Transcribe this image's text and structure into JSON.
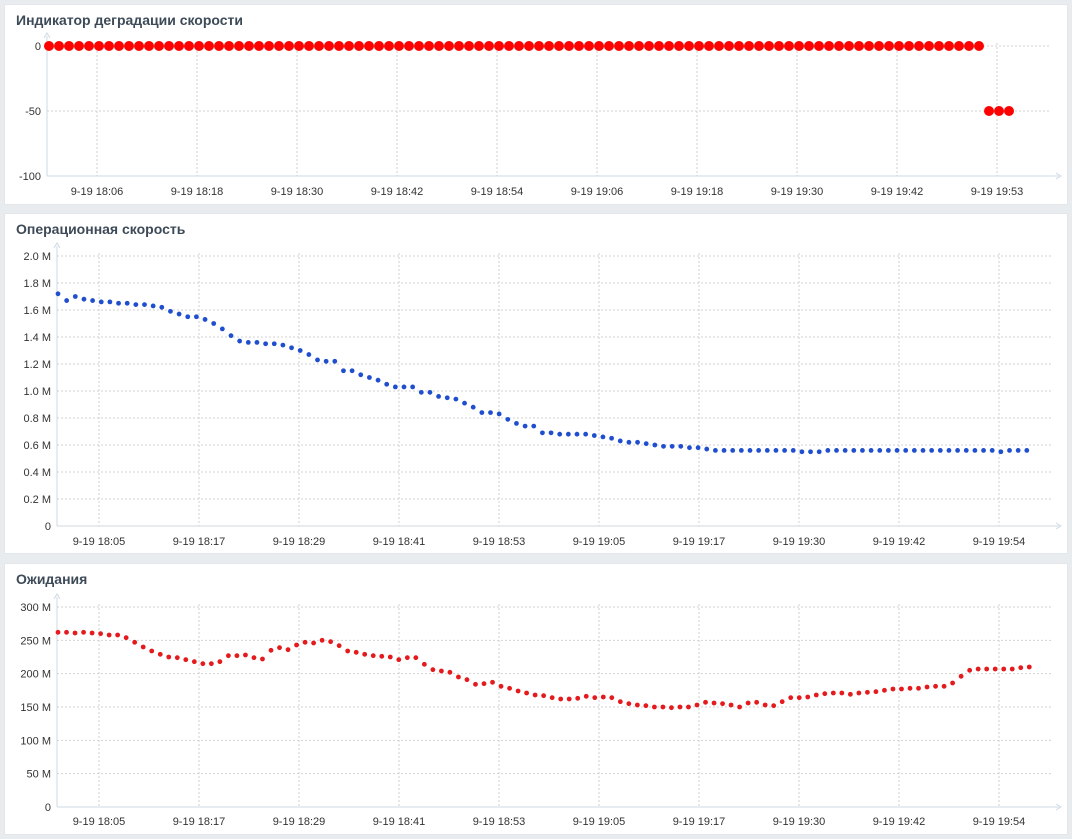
{
  "chart_data": [
    {
      "type": "scatter",
      "title": "Индикатор деградации скорости",
      "xlabel": "",
      "ylabel": "",
      "ylim": [
        -100,
        0
      ],
      "y_ticks": [
        "0",
        "-50",
        "-100"
      ],
      "y_tick_values": [
        0,
        -50,
        -100
      ],
      "x_ticks": [
        "9-19 18:06",
        "9-19 18:18",
        "9-19 18:30",
        "9-19 18:42",
        "9-19 18:54",
        "9-19 19:06",
        "9-19 19:18",
        "9-19 19:30",
        "9-19 19:42",
        "9-19 19:53"
      ],
      "color": "#ff0000",
      "grid": true,
      "series": [
        {
          "values": [
            0,
            0,
            0,
            0,
            0,
            0,
            0,
            0,
            0,
            0,
            0,
            0,
            0,
            0,
            0,
            0,
            0,
            0,
            0,
            0,
            0,
            0,
            0,
            0,
            0,
            0,
            0,
            0,
            0,
            0,
            0,
            0,
            0,
            0,
            0,
            0,
            0,
            0,
            0,
            0,
            0,
            0,
            0,
            0,
            0,
            0,
            0,
            0,
            0,
            0,
            0,
            0,
            0,
            0,
            0,
            0,
            0,
            0,
            0,
            0,
            0,
            0,
            0,
            0,
            0,
            0,
            0,
            0,
            0,
            0,
            0,
            0,
            0,
            0,
            0,
            0,
            0,
            0,
            0,
            0,
            0,
            0,
            0,
            0,
            0,
            0,
            0,
            0,
            0,
            0,
            0,
            0,
            0,
            0,
            -50,
            -50,
            -50
          ]
        }
      ]
    },
    {
      "type": "scatter",
      "title": "Операционная скорость",
      "xlabel": "",
      "ylabel": "",
      "ylim": [
        0,
        2.0
      ],
      "y_ticks": [
        "2.0 M",
        "1.8 M",
        "1.6 M",
        "1.4 M",
        "1.2 M",
        "1.0 M",
        "0.8 M",
        "0.6 M",
        "0.4 M",
        "0.2 M",
        "0"
      ],
      "y_tick_values": [
        2.0,
        1.8,
        1.6,
        1.4,
        1.2,
        1.0,
        0.8,
        0.6,
        0.4,
        0.2,
        0
      ],
      "x_ticks": [
        "9-19 18:05",
        "9-19 18:17",
        "9-19 18:29",
        "9-19 18:41",
        "9-19 18:53",
        "9-19 19:05",
        "9-19 19:17",
        "9-19 19:30",
        "9-19 19:42",
        "9-19 19:54"
      ],
      "color": "#1f4fcf",
      "grid": true,
      "series": [
        {
          "values": [
            1.72,
            1.67,
            1.7,
            1.68,
            1.67,
            1.66,
            1.66,
            1.65,
            1.65,
            1.64,
            1.64,
            1.63,
            1.62,
            1.59,
            1.57,
            1.55,
            1.55,
            1.53,
            1.5,
            1.46,
            1.41,
            1.37,
            1.36,
            1.36,
            1.35,
            1.35,
            1.34,
            1.32,
            1.3,
            1.27,
            1.23,
            1.22,
            1.22,
            1.15,
            1.15,
            1.12,
            1.1,
            1.08,
            1.05,
            1.03,
            1.03,
            1.03,
            0.99,
            0.99,
            0.96,
            0.95,
            0.94,
            0.91,
            0.88,
            0.84,
            0.84,
            0.83,
            0.79,
            0.76,
            0.74,
            0.74,
            0.69,
            0.69,
            0.68,
            0.68,
            0.68,
            0.68,
            0.67,
            0.66,
            0.65,
            0.63,
            0.62,
            0.62,
            0.61,
            0.6,
            0.59,
            0.59,
            0.59,
            0.58,
            0.58,
            0.57,
            0.56,
            0.56,
            0.56,
            0.56,
            0.56,
            0.56,
            0.56,
            0.56,
            0.56,
            0.56,
            0.55,
            0.55,
            0.55,
            0.56,
            0.56,
            0.56,
            0.56,
            0.56,
            0.56,
            0.56,
            0.56,
            0.56,
            0.56,
            0.56,
            0.56,
            0.56,
            0.56,
            0.56,
            0.56,
            0.56,
            0.56,
            0.56,
            0.56,
            0.55,
            0.56,
            0.56,
            0.56
          ]
        }
      ]
    },
    {
      "type": "scatter",
      "title": "Ожидания",
      "xlabel": "",
      "ylabel": "",
      "ylim": [
        0,
        300
      ],
      "y_ticks": [
        "300 M",
        "250 M",
        "200 M",
        "150 M",
        "100 M",
        "50 M",
        "0"
      ],
      "y_tick_values": [
        300,
        250,
        200,
        150,
        100,
        50,
        0
      ],
      "x_ticks": [
        "9-19 18:05",
        "9-19 18:17",
        "9-19 18:29",
        "9-19 18:41",
        "9-19 18:53",
        "9-19 19:05",
        "9-19 19:17",
        "9-19 19:30",
        "9-19 19:42",
        "9-19 19:54"
      ],
      "color": "#e41a1c",
      "grid": true,
      "series": [
        {
          "values": [
            262,
            262,
            261,
            262,
            261,
            260,
            258,
            258,
            254,
            247,
            240,
            234,
            229,
            225,
            224,
            221,
            218,
            215,
            215,
            218,
            227,
            227,
            228,
            224,
            222,
            235,
            239,
            236,
            243,
            247,
            246,
            250,
            248,
            242,
            234,
            232,
            229,
            227,
            226,
            225,
            221,
            224,
            224,
            214,
            206,
            204,
            202,
            195,
            191,
            184,
            185,
            187,
            181,
            178,
            174,
            171,
            168,
            167,
            164,
            162,
            162,
            163,
            166,
            164,
            165,
            164,
            158,
            155,
            153,
            152,
            150,
            150,
            149,
            150,
            150,
            153,
            157,
            156,
            155,
            153,
            150,
            156,
            157,
            153,
            152,
            158,
            164,
            164,
            165,
            168,
            170,
            171,
            171,
            169,
            171,
            172,
            173,
            175,
            177,
            177,
            178,
            178,
            180,
            181,
            181,
            186,
            196,
            205,
            207,
            207,
            207,
            207,
            207,
            209,
            210
          ]
        }
      ]
    }
  ]
}
